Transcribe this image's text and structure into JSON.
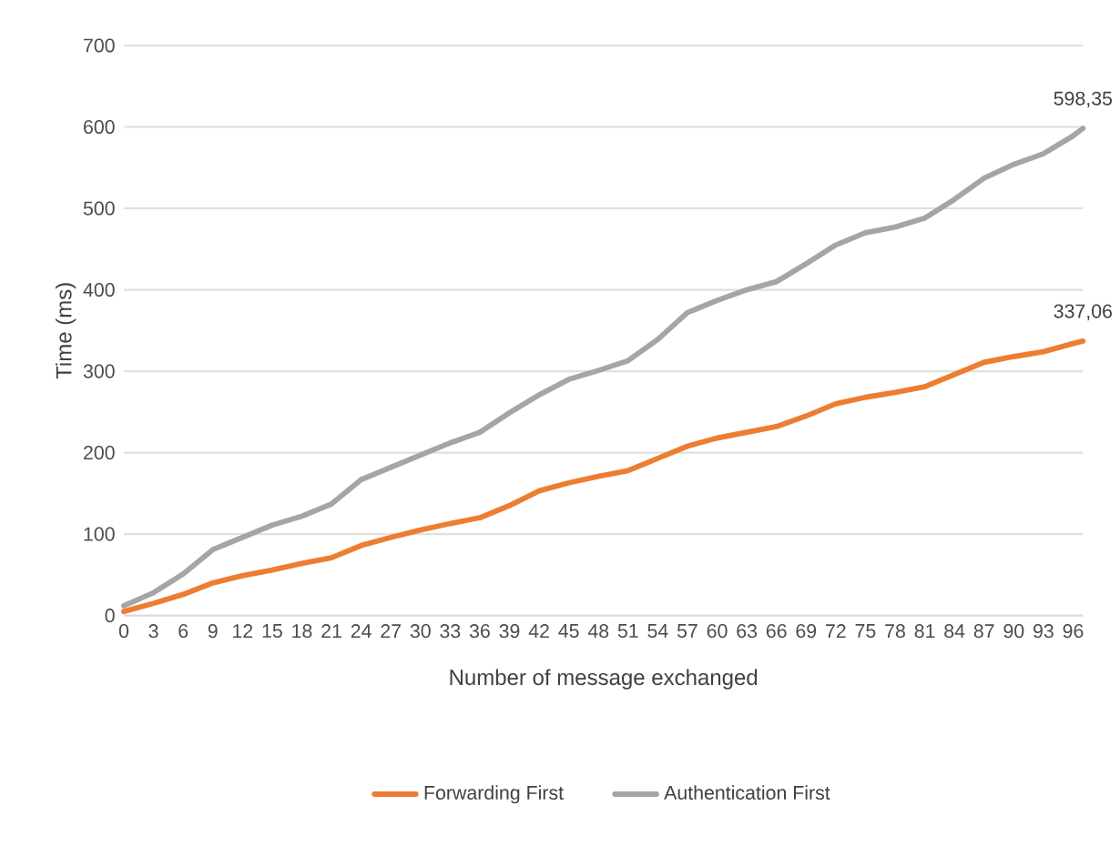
{
  "chart_data": {
    "type": "line",
    "xlabel": "Number of message exchanged",
    "ylabel": "Time (ms)",
    "x": [
      0,
      3,
      6,
      9,
      12,
      15,
      18,
      21,
      24,
      27,
      30,
      33,
      36,
      39,
      42,
      45,
      48,
      51,
      54,
      57,
      60,
      63,
      66,
      69,
      72,
      75,
      78,
      81,
      84,
      87,
      90,
      93,
      96,
      97
    ],
    "xlim": [
      0,
      97
    ],
    "xticks": [
      0,
      3,
      6,
      9,
      12,
      15,
      18,
      21,
      24,
      27,
      30,
      33,
      36,
      39,
      42,
      45,
      48,
      51,
      54,
      57,
      60,
      63,
      66,
      69,
      72,
      75,
      78,
      81,
      84,
      87,
      90,
      93,
      96
    ],
    "ylim": [
      0,
      700
    ],
    "yticks": [
      0,
      100,
      200,
      300,
      400,
      500,
      600,
      700
    ],
    "series": [
      {
        "name": "Forwarding First",
        "color": "#ed7d31",
        "values": [
          5,
          15,
          26,
          40,
          49,
          56,
          64,
          71,
          86,
          96,
          105,
          113,
          120,
          135,
          153,
          163,
          171,
          178,
          193,
          208,
          218,
          225,
          232,
          245,
          260,
          268,
          274,
          281,
          296,
          311,
          318,
          324,
          334,
          337.06
        ]
      },
      {
        "name": "Authentication First",
        "color": "#a5a5a5",
        "values": [
          12,
          28,
          51,
          81,
          96,
          111,
          122,
          137,
          167,
          182,
          197,
          212,
          225,
          249,
          271,
          290,
          301,
          313,
          339,
          372,
          387,
          400,
          410,
          432,
          455,
          470,
          477,
          488,
          511,
          537,
          554,
          567,
          589,
          598.35
        ]
      }
    ],
    "annotations": [
      {
        "text": "598,35",
        "x": 97,
        "y": 598.35
      },
      {
        "text": "337,06",
        "x": 97,
        "y": 337.06
      }
    ],
    "grid": "y",
    "legend": "bottom",
    "marker": "none",
    "line_style": "solid"
  }
}
